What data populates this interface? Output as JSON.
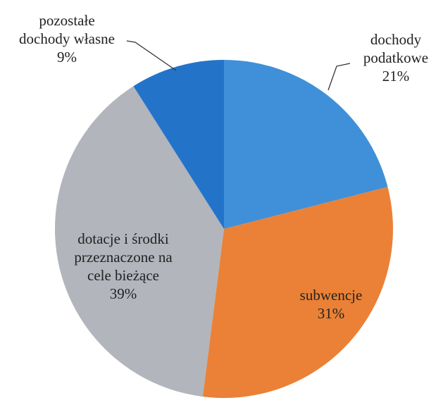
{
  "chart_data": {
    "type": "pie",
    "categories": [
      "dochody\npodatkowe",
      "subwencje",
      "dotacje i środki\nprzeznaczone na\ncele bieżące",
      "pozostałe\ndochody własne"
    ],
    "values": [
      21,
      31,
      39,
      9
    ],
    "value_labels": [
      "21%",
      "31%",
      "39%",
      "9%"
    ],
    "colors": [
      "#3f90d8",
      "#ea8136",
      "#b2b5bc",
      "#2374c9"
    ]
  }
}
